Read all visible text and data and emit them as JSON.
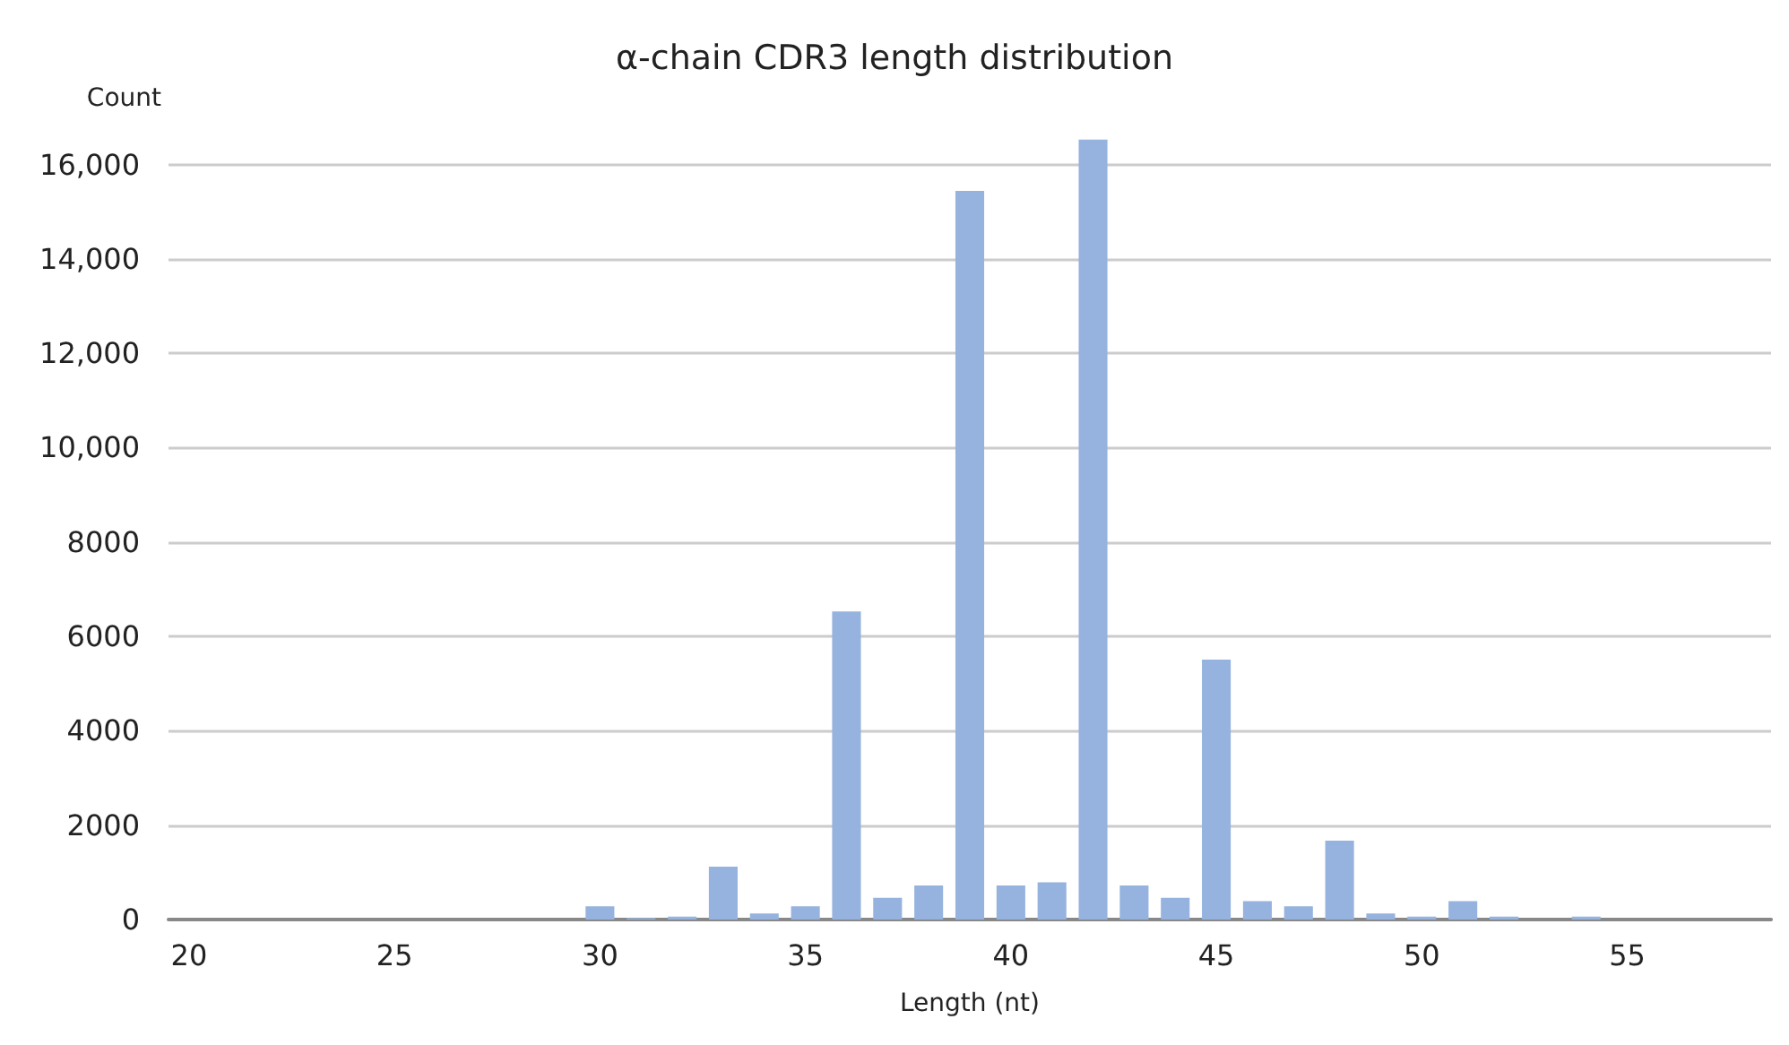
{
  "chart_data": {
    "type": "bar",
    "title": "α-chain CDR3 length distribution",
    "xlabel": "Length (nt)",
    "ylabel": "Count",
    "categories": [
      "20",
      null,
      null,
      null,
      null,
      "25",
      null,
      null,
      null,
      null,
      "30",
      null,
      null,
      null,
      null,
      "35",
      null,
      null,
      null,
      null,
      "40",
      null,
      null,
      null,
      null,
      "45",
      null,
      null,
      null,
      null,
      "50",
      null,
      null,
      null,
      null,
      "55",
      null,
      null,
      null
    ],
    "values": [
      0,
      0,
      0,
      0,
      0,
      0,
      0,
      0,
      0,
      0,
      280,
      30,
      60,
      1120,
      130,
      280,
      6530,
      460,
      720,
      15440,
      720,
      790,
      16530,
      720,
      460,
      5510,
      390,
      280,
      1670,
      130,
      60,
      390,
      60,
      0,
      60,
      0,
      0,
      0,
      0
    ],
    "color": "#95b3de",
    "ylim": [
      0,
      16600
    ],
    "yticks": [
      0,
      2000,
      4000,
      6000,
      8000,
      {
        "value": 10000,
        "label": "10,000"
      },
      {
        "value": 12000,
        "label": "12,000"
      },
      {
        "value": 14000,
        "label": "14,000"
      },
      {
        "value": 16000,
        "label": "16,000"
      }
    ],
    "grid": "y"
  }
}
